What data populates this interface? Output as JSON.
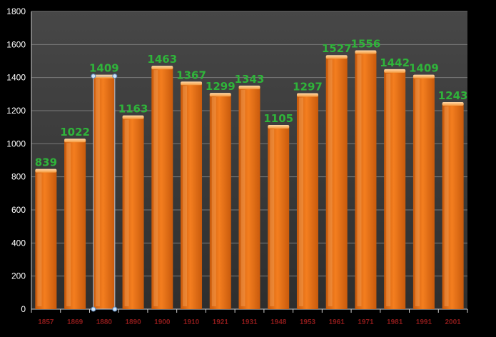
{
  "chart_data": {
    "type": "bar",
    "categories": [
      "1857",
      "1869",
      "1880",
      "1890",
      "1900",
      "1910",
      "1921",
      "1931",
      "1948",
      "1953",
      "1961",
      "1971",
      "1981",
      "1991",
      "2001"
    ],
    "values": [
      839,
      1022,
      1409,
      1163,
      1463,
      1367,
      1299,
      1343,
      1105,
      1297,
      1527,
      1556,
      1442,
      1409,
      1243
    ],
    "title": "",
    "xlabel": "",
    "ylabel": "",
    "ylim": [
      0,
      1800
    ],
    "yticks": [
      "0",
      "200",
      "400",
      "600",
      "800",
      "1000",
      "1200",
      "1400",
      "1600",
      "1800"
    ],
    "grid": true,
    "legend": "none",
    "selected_index": 2,
    "colors": {
      "bar": "#f47e1f",
      "bar_light": "#ffb36a",
      "bar_dark": "#c85a0c",
      "data_label": "#2fb43a",
      "x_tick": "#8b1a1a",
      "y_tick": "#ffffff",
      "plot_bg": "#3d3d3d",
      "grid": "#7a7a7a",
      "page_bg": "#000000"
    }
  }
}
